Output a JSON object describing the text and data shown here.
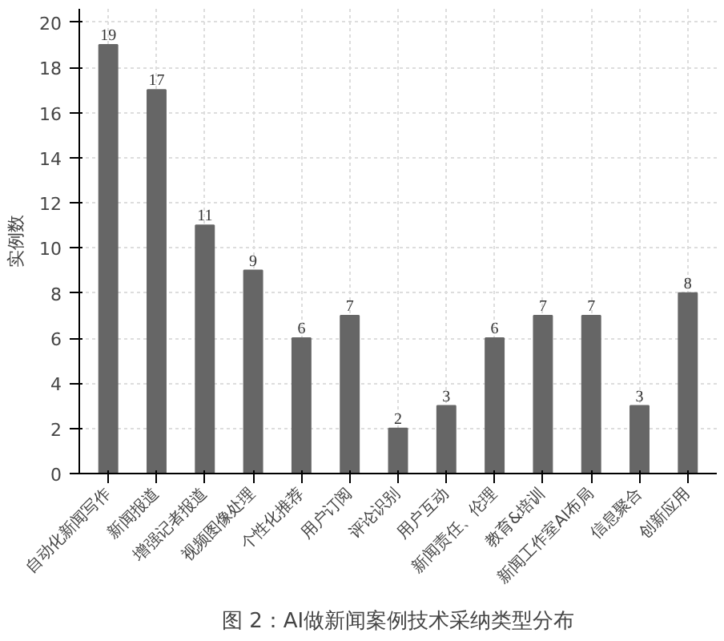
{
  "chart_data": {
    "type": "bar",
    "title": "图 2：AI做新闻案例技术采纳类型分布",
    "ylabel": "实例数",
    "categories": [
      "自动化新闻写作",
      "新闻报道",
      "增强记者报道",
      "视频图像处理",
      "个性化推荐",
      "用户订阅",
      "评论识别",
      "用户互动",
      "新闻责任、伦理",
      "教育&培训",
      "新闻工作室AI布局",
      "信息聚合",
      "创新应用"
    ],
    "values": [
      19,
      17,
      11,
      9,
      6,
      7,
      2,
      3,
      6,
      7,
      7,
      3,
      8
    ],
    "color": "#666666",
    "ylim": [
      0,
      20.6
    ],
    "yticks": [
      0,
      2,
      4,
      6,
      8,
      10,
      12,
      14,
      16,
      18,
      20
    ],
    "grid": true,
    "data_labels": true
  }
}
